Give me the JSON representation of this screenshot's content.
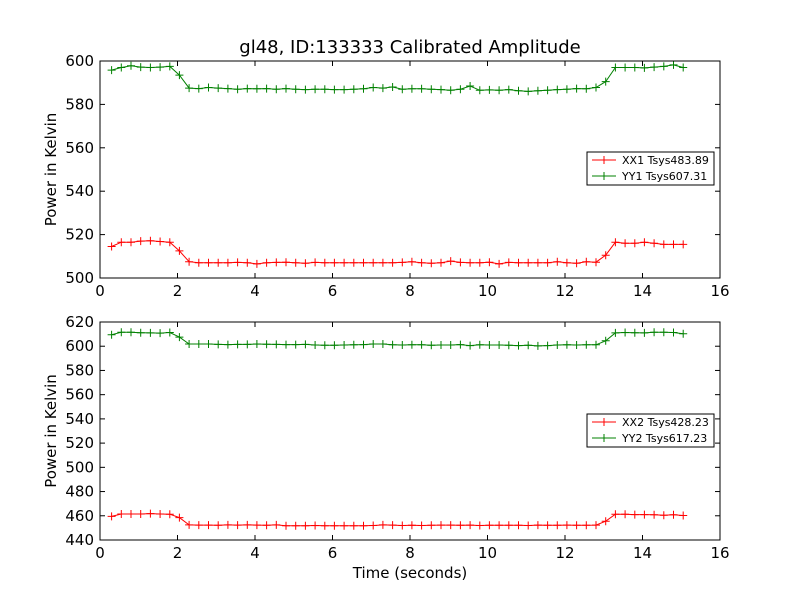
{
  "chart_data": [
    {
      "type": "line",
      "title": "gl48, ID:133333 Calibrated Amplitude",
      "xlabel": "",
      "ylabel": "Power in Kelvin",
      "xlim": [
        0,
        16
      ],
      "ylim": [
        500,
        600
      ],
      "xticks": [
        0,
        2,
        4,
        6,
        8,
        10,
        12,
        14,
        16
      ],
      "yticks": [
        500,
        520,
        540,
        560,
        580,
        600
      ],
      "grid": false,
      "legend_position": "center-right",
      "x": [
        0.3,
        0.55,
        0.8,
        1.05,
        1.3,
        1.55,
        1.8,
        2.05,
        2.3,
        2.55,
        2.8,
        3.05,
        3.3,
        3.55,
        3.8,
        4.05,
        4.3,
        4.55,
        4.8,
        5.05,
        5.3,
        5.55,
        5.8,
        6.05,
        6.3,
        6.55,
        6.8,
        7.05,
        7.3,
        7.55,
        7.8,
        8.05,
        8.3,
        8.55,
        8.8,
        9.05,
        9.3,
        9.55,
        9.8,
        10.05,
        10.3,
        10.55,
        10.8,
        11.05,
        11.3,
        11.55,
        11.8,
        12.05,
        12.3,
        12.55,
        12.8,
        13.05,
        13.3,
        13.55,
        13.8,
        14.05,
        14.3,
        14.55,
        14.8,
        15.05
      ],
      "series": [
        {
          "name": "XX1 Tsys483.89",
          "color": "#ff0000",
          "values": [
            514.5,
            516.5,
            516.5,
            517.0,
            517.2,
            516.8,
            516.5,
            512.5,
            507.5,
            507.0,
            507.0,
            507.0,
            507.0,
            507.2,
            507.0,
            506.5,
            507.0,
            507.2,
            507.3,
            507.0,
            506.8,
            507.2,
            507.0,
            507.0,
            507.0,
            507.0,
            507.0,
            507.0,
            507.0,
            507.0,
            507.2,
            507.5,
            507.0,
            506.8,
            507.0,
            507.8,
            507.2,
            507.0,
            507.0,
            507.3,
            506.5,
            507.2,
            507.0,
            507.0,
            507.0,
            507.0,
            507.5,
            507.0,
            506.8,
            507.5,
            507.3,
            510.5,
            516.5,
            516.0,
            516.0,
            516.5,
            516.0,
            515.5,
            515.5,
            515.5
          ]
        },
        {
          "name": "YY1 Tsys607.31",
          "color": "#008000",
          "values": [
            595.8,
            597.0,
            597.8,
            597.2,
            597.0,
            597.2,
            597.5,
            593.5,
            587.5,
            587.3,
            587.8,
            587.5,
            587.3,
            587.0,
            587.3,
            587.2,
            587.3,
            587.0,
            587.3,
            587.0,
            586.8,
            587.0,
            587.0,
            586.8,
            586.8,
            587.0,
            587.2,
            587.8,
            587.5,
            588.0,
            587.0,
            587.2,
            587.2,
            587.0,
            586.8,
            586.5,
            587.0,
            588.5,
            586.5,
            586.7,
            586.5,
            586.8,
            586.3,
            586.0,
            586.3,
            586.5,
            586.8,
            587.0,
            587.3,
            587.2,
            587.8,
            590.5,
            597.0,
            597.0,
            597.0,
            596.8,
            597.2,
            597.5,
            598.2,
            597.0
          ]
        }
      ]
    },
    {
      "type": "line",
      "title": "",
      "xlabel": "Time (seconds)",
      "ylabel": "Power in Kelvin",
      "xlim": [
        0,
        16
      ],
      "ylim": [
        440,
        620
      ],
      "xticks": [
        0,
        2,
        4,
        6,
        8,
        10,
        12,
        14,
        16
      ],
      "yticks": [
        440,
        460,
        480,
        500,
        520,
        540,
        560,
        580,
        600,
        620
      ],
      "grid": false,
      "legend_position": "center-right",
      "x": [
        0.3,
        0.55,
        0.8,
        1.05,
        1.3,
        1.55,
        1.8,
        2.05,
        2.3,
        2.55,
        2.8,
        3.05,
        3.3,
        3.55,
        3.8,
        4.05,
        4.3,
        4.55,
        4.8,
        5.05,
        5.3,
        5.55,
        5.8,
        6.05,
        6.3,
        6.55,
        6.8,
        7.05,
        7.3,
        7.55,
        7.8,
        8.05,
        8.3,
        8.55,
        8.8,
        9.05,
        9.3,
        9.55,
        9.8,
        10.05,
        10.3,
        10.55,
        10.8,
        11.05,
        11.3,
        11.55,
        11.8,
        12.05,
        12.3,
        12.55,
        12.8,
        13.05,
        13.3,
        13.55,
        13.8,
        14.05,
        14.3,
        14.55,
        14.8,
        15.05
      ],
      "series": [
        {
          "name": "XX2 Tsys428.23",
          "color": "#ff0000",
          "values": [
            459.5,
            461.5,
            461.5,
            461.5,
            461.8,
            461.5,
            461.3,
            458.5,
            452.5,
            452.3,
            452.3,
            452.2,
            452.5,
            452.3,
            452.5,
            452.3,
            452.2,
            452.5,
            451.8,
            451.8,
            451.8,
            452.0,
            451.7,
            451.7,
            451.7,
            451.8,
            451.7,
            452.0,
            452.5,
            452.3,
            452.0,
            452.2,
            452.0,
            452.2,
            452.3,
            452.3,
            452.2,
            452.3,
            452.0,
            452.2,
            452.2,
            452.2,
            452.2,
            452.0,
            452.3,
            452.2,
            452.2,
            452.3,
            452.2,
            452.2,
            452.3,
            455.5,
            461.3,
            461.3,
            461.0,
            461.0,
            460.8,
            460.5,
            460.8,
            460.2
          ]
        },
        {
          "name": "YY2 Tsys617.23",
          "color": "#008000",
          "values": [
            609.5,
            611.5,
            611.5,
            611.2,
            611.0,
            610.8,
            611.3,
            607.5,
            601.8,
            601.8,
            601.8,
            601.5,
            601.3,
            601.5,
            601.5,
            601.8,
            601.7,
            601.5,
            601.3,
            601.3,
            601.5,
            601.0,
            600.8,
            600.8,
            601.0,
            601.2,
            601.3,
            601.8,
            601.8,
            601.2,
            601.0,
            601.2,
            601.2,
            600.8,
            601.0,
            601.0,
            601.3,
            600.5,
            601.2,
            601.0,
            601.0,
            600.8,
            600.5,
            600.8,
            600.3,
            600.5,
            601.0,
            601.2,
            601.0,
            601.2,
            601.2,
            604.5,
            611.0,
            611.3,
            611.2,
            611.0,
            611.5,
            611.5,
            611.3,
            610.3
          ]
        }
      ]
    }
  ]
}
